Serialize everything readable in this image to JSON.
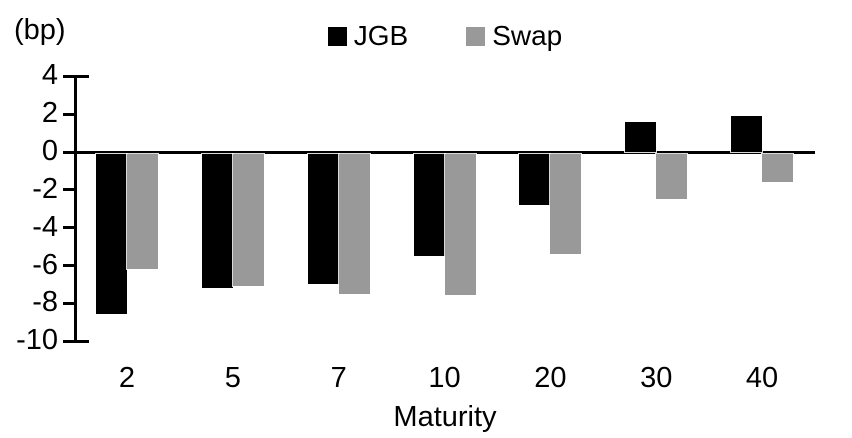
{
  "chart": {
    "unit_label": "(bp)"
  },
  "chart_data": {
    "type": "bar",
    "title": "",
    "unit_label": "(bp)",
    "xlabel": "Maturity",
    "ylabel": "",
    "categories": [
      "2",
      "5",
      "7",
      "10",
      "20",
      "30",
      "40"
    ],
    "series": [
      {
        "name": "JGB",
        "color": "#000000",
        "values": [
          -8.5,
          -7.1,
          -6.9,
          -5.4,
          -2.7,
          1.6,
          1.9
        ]
      },
      {
        "name": "Swap",
        "color": "#999999",
        "values": [
          -6.1,
          -7.0,
          -7.4,
          -7.5,
          -5.3,
          -2.4,
          -1.5
        ]
      }
    ],
    "yticks": [
      4,
      2,
      0,
      -2,
      -4,
      -6,
      -8,
      -10
    ],
    "ylim": [
      -10,
      4
    ],
    "legend_position": "top-center",
    "grid": false,
    "colors": {
      "jgb": "#000000",
      "swap": "#999999",
      "axis": "#000000",
      "background": "#ffffff"
    }
  }
}
